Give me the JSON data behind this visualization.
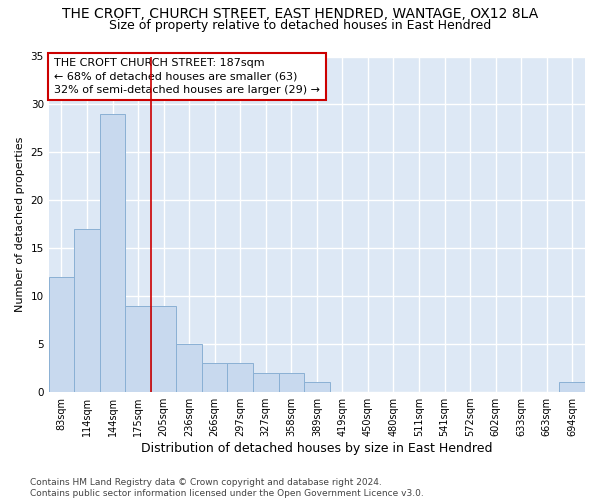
{
  "title": "THE CROFT, CHURCH STREET, EAST HENDRED, WANTAGE, OX12 8LA",
  "subtitle": "Size of property relative to detached houses in East Hendred",
  "xlabel": "Distribution of detached houses by size in East Hendred",
  "ylabel": "Number of detached properties",
  "footnote": "Contains HM Land Registry data © Crown copyright and database right 2024.\nContains public sector information licensed under the Open Government Licence v3.0.",
  "bin_labels": [
    "83sqm",
    "114sqm",
    "144sqm",
    "175sqm",
    "205sqm",
    "236sqm",
    "266sqm",
    "297sqm",
    "327sqm",
    "358sqm",
    "389sqm",
    "419sqm",
    "450sqm",
    "480sqm",
    "511sqm",
    "541sqm",
    "572sqm",
    "602sqm",
    "633sqm",
    "663sqm",
    "694sqm"
  ],
  "values": [
    12,
    17,
    29,
    9,
    9,
    5,
    3,
    3,
    2,
    2,
    1,
    0,
    0,
    0,
    0,
    0,
    0,
    0,
    0,
    0,
    1
  ],
  "bar_color": "#c8d9ee",
  "bar_edge_color": "#8ab0d4",
  "red_line_x": 3.5,
  "annotation_line1": "THE CROFT CHURCH STREET: 187sqm",
  "annotation_line2": "← 68% of detached houses are smaller (63)",
  "annotation_line3": "32% of semi-detached houses are larger (29) →",
  "annotation_box_color": "#ffffff",
  "annotation_box_edge": "#cc0000",
  "ylim": [
    0,
    35
  ],
  "yticks": [
    0,
    5,
    10,
    15,
    20,
    25,
    30,
    35
  ],
  "background_color": "#dde8f5",
  "grid_color": "#ffffff",
  "fig_bg_color": "#ffffff",
  "title_fontsize": 10,
  "subtitle_fontsize": 9,
  "xlabel_fontsize": 9,
  "ylabel_fontsize": 8,
  "tick_fontsize": 7,
  "annotation_fontsize": 8,
  "footnote_fontsize": 6.5
}
